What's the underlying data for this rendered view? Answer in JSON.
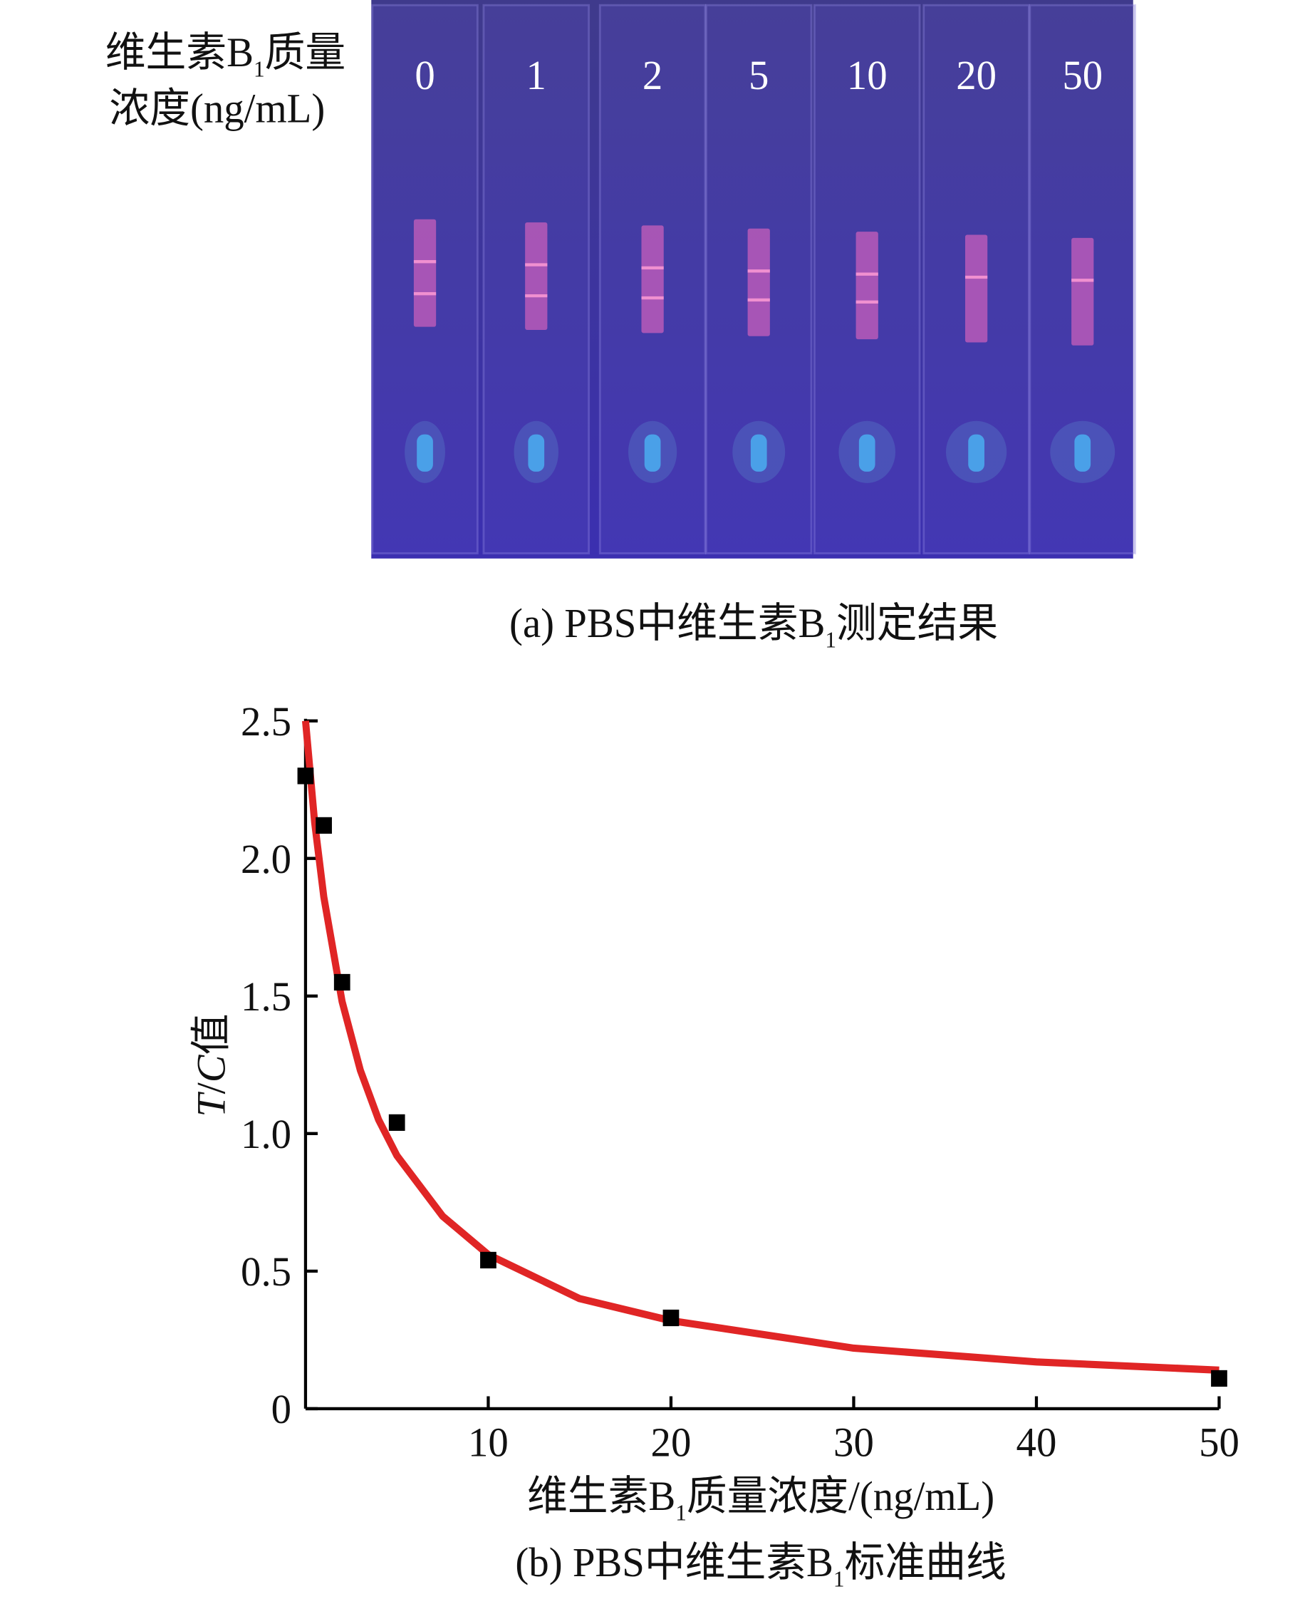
{
  "panel_a": {
    "label_line1": {
      "text": "维生素B",
      "sub": "1",
      "rest": "质量"
    },
    "label_line2": "浓度(ng/mL)",
    "strip_labels": [
      "0",
      "1",
      "2",
      "5",
      "10",
      "20",
      "50"
    ],
    "caption": {
      "text": "(a) PBS中维生素B",
      "sub": "1",
      "rest": "测定结果"
    }
  },
  "chart_data": {
    "type": "scatter",
    "caption": {
      "text": "(b) PBS中维生素B",
      "sub": "1",
      "rest": "标准曲线"
    },
    "x_label": {
      "text": "维生素B",
      "sub": "1",
      "rest": "质量浓度/(ng/mL)"
    },
    "y_label": {
      "italic1": "T",
      "slash": "/",
      "italic2": "C",
      "rest": "值"
    },
    "xlim": [
      0,
      50
    ],
    "xticks": [
      10,
      20,
      30,
      40,
      50
    ],
    "ylim": [
      0,
      2.5
    ],
    "yticks": [
      0,
      0.5,
      {
        "value": 1,
        "label": "1.0"
      },
      1.5,
      {
        "value": 2,
        "label": "2.0"
      },
      2.5
    ],
    "series": [
      {
        "type": "line",
        "color": "#e02525",
        "x": [
          0,
          0.5,
          1,
          2,
          3,
          4,
          5,
          7.5,
          10,
          15,
          20,
          30,
          40,
          50
        ],
        "values": [
          2.5,
          2.13,
          1.86,
          1.48,
          1.23,
          1.05,
          0.92,
          0.7,
          0.56,
          0.4,
          0.32,
          0.22,
          0.17,
          0.14
        ]
      },
      {
        "type": "scatter",
        "color": "#000000",
        "x": [
          0,
          1,
          2,
          5,
          10,
          20,
          50
        ],
        "values": [
          2.3,
          2.12,
          1.55,
          1.04,
          0.54,
          0.33,
          0.11
        ]
      }
    ]
  }
}
